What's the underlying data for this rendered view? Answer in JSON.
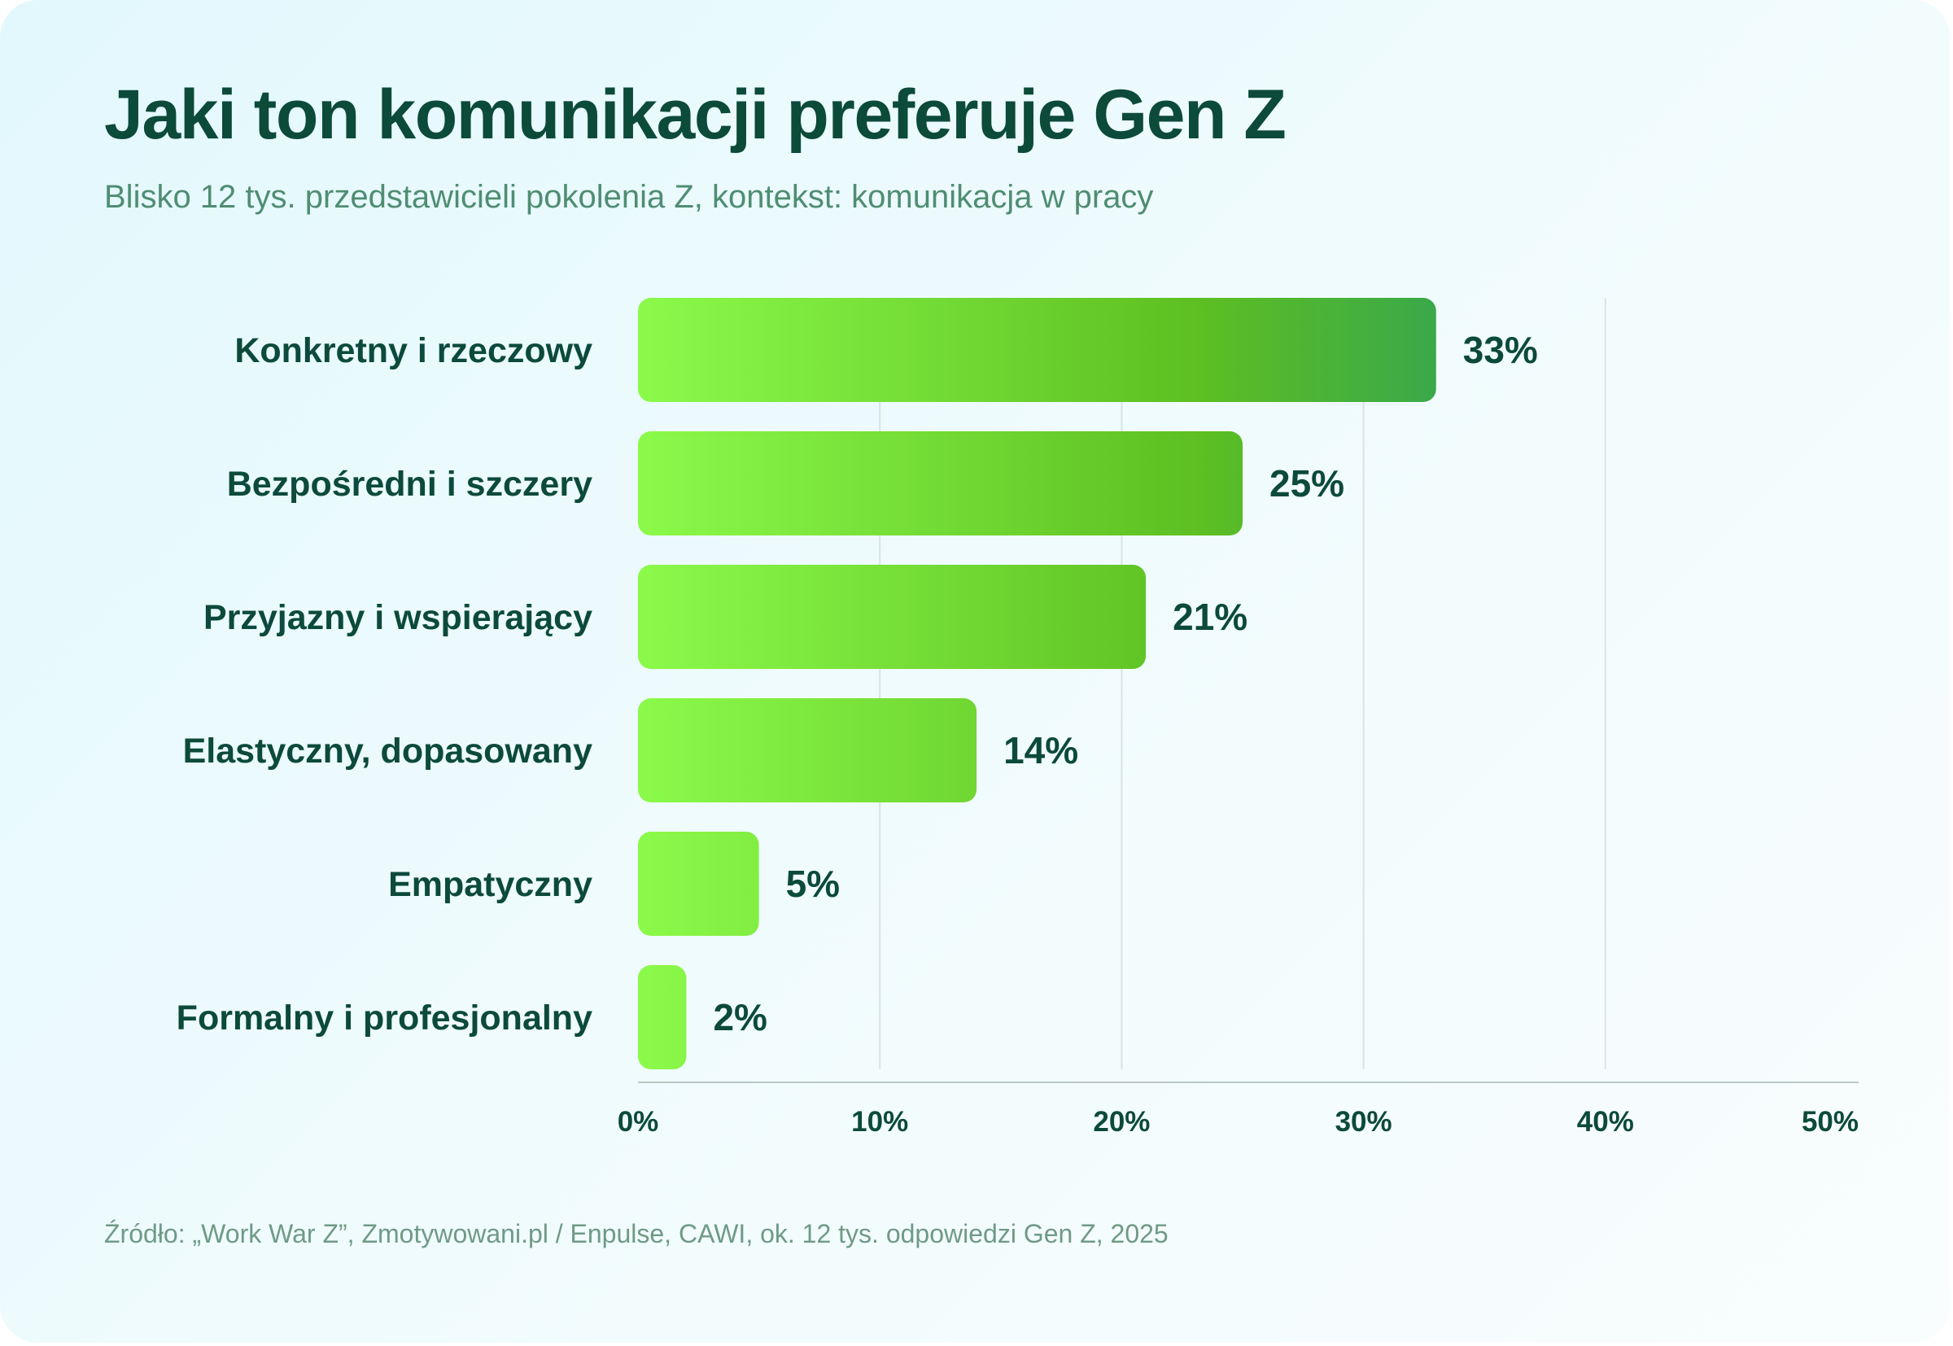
{
  "colors": {
    "text_dark": "#0c4a3a",
    "subtitle": "#4f8d72",
    "source": "#6f9a86",
    "bar_light": "#8bfa4a",
    "bar_mid": "#5dbf22",
    "bar_dark": "#3aa84a",
    "grid": "#d9e4e3",
    "axis": "#b8c8c6"
  },
  "chart_data": {
    "type": "bar",
    "orientation": "horizontal",
    "title": "Jaki ton komunikacji preferuje Gen Z",
    "subtitle": "Blisko 12 tys. przedstawicieli pokolenia Z, kontekst: komunikacja w pracy",
    "categories": [
      "Konkretny i rzeczowy",
      "Bezpośredni i szczery",
      "Przyjazny i wspierający",
      "Elastyczny, dopasowany",
      "Empatyczny",
      "Formalny i profesjonalny"
    ],
    "values": [
      33,
      25,
      21,
      14,
      5,
      2
    ],
    "value_labels": [
      "33%",
      "25%",
      "21%",
      "14%",
      "5%",
      "2%"
    ],
    "xlim": [
      0,
      50
    ],
    "x_ticks": [
      0,
      10,
      20,
      30,
      40,
      50
    ],
    "x_tick_labels": [
      "0%",
      "10%",
      "20%",
      "30%",
      "40%",
      "50%"
    ],
    "grid": true,
    "legend": "none",
    "source": "Źródło: „Work War Z”, Zmotywowani.pl / Enpulse, CAWI, ok. 12 tys. odpowiedzi Gen Z, 2025"
  }
}
